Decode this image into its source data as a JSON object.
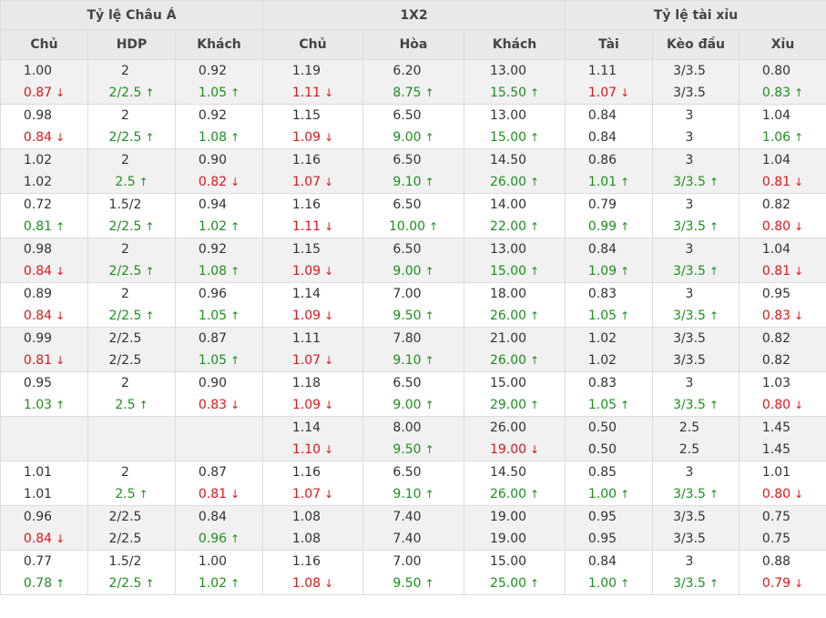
{
  "header": {
    "groups": [
      "Tỷ lệ Châu Á",
      "1X2",
      "Tỷ lệ tài xỉu"
    ],
    "columns": [
      "Chủ",
      "HDP",
      "Khách",
      "Chủ",
      "Hòa",
      "Khách",
      "Tài",
      "Kèo đầu",
      "Xỉu"
    ]
  },
  "colors": {
    "up": "#1d8f1d",
    "down": "#e0161b",
    "text": "#333333",
    "row_alt_bg": "#f1f1f1"
  },
  "rows": [
    {
      "open": [
        "1.00",
        "2",
        "0.92",
        "1.19",
        "6.20",
        "13.00",
        "1.11",
        "3/3.5",
        "0.80"
      ],
      "live": [
        "0.87",
        "2/2.5",
        "1.05",
        "1.11",
        "8.75",
        "15.50",
        "1.07",
        "3/3.5",
        "0.83"
      ],
      "trend": [
        "down",
        "up",
        "up",
        "down",
        "up",
        "up",
        "down",
        "",
        "up"
      ]
    },
    {
      "open": [
        "0.98",
        "2",
        "0.92",
        "1.15",
        "6.50",
        "13.00",
        "0.84",
        "3",
        "1.04"
      ],
      "live": [
        "0.84",
        "2/2.5",
        "1.08",
        "1.09",
        "9.00",
        "15.00",
        "0.84",
        "3",
        "1.06"
      ],
      "trend": [
        "down",
        "up",
        "up",
        "down",
        "up",
        "up",
        "",
        "",
        "up"
      ]
    },
    {
      "open": [
        "1.02",
        "2",
        "0.90",
        "1.16",
        "6.50",
        "14.50",
        "0.86",
        "3",
        "1.04"
      ],
      "live": [
        "1.02",
        "2.5",
        "0.82",
        "1.07",
        "9.10",
        "26.00",
        "1.01",
        "3/3.5",
        "0.81"
      ],
      "trend": [
        "",
        "up",
        "down",
        "down",
        "up",
        "up",
        "up",
        "up",
        "down"
      ]
    },
    {
      "open": [
        "0.72",
        "1.5/2",
        "0.94",
        "1.16",
        "6.50",
        "14.00",
        "0.79",
        "3",
        "0.82"
      ],
      "live": [
        "0.81",
        "2/2.5",
        "1.02",
        "1.11",
        "10.00",
        "22.00",
        "0.99",
        "3/3.5",
        "0.80"
      ],
      "trend": [
        "up",
        "up",
        "up",
        "down",
        "up",
        "up",
        "up",
        "up",
        "down"
      ]
    },
    {
      "open": [
        "0.98",
        "2",
        "0.92",
        "1.15",
        "6.50",
        "13.00",
        "0.84",
        "3",
        "1.04"
      ],
      "live": [
        "0.84",
        "2/2.5",
        "1.08",
        "1.09",
        "9.00",
        "15.00",
        "1.09",
        "3/3.5",
        "0.81"
      ],
      "trend": [
        "down",
        "up",
        "up",
        "down",
        "up",
        "up",
        "up",
        "up",
        "down"
      ]
    },
    {
      "open": [
        "0.89",
        "2",
        "0.96",
        "1.14",
        "7.00",
        "18.00",
        "0.83",
        "3",
        "0.95"
      ],
      "live": [
        "0.84",
        "2/2.5",
        "1.05",
        "1.09",
        "9.50",
        "26.00",
        "1.05",
        "3/3.5",
        "0.83"
      ],
      "trend": [
        "down",
        "up",
        "up",
        "down",
        "up",
        "up",
        "up",
        "up",
        "down"
      ]
    },
    {
      "open": [
        "0.99",
        "2/2.5",
        "0.87",
        "1.11",
        "7.80",
        "21.00",
        "1.02",
        "3/3.5",
        "0.82"
      ],
      "live": [
        "0.81",
        "2/2.5",
        "1.05",
        "1.07",
        "9.10",
        "26.00",
        "1.02",
        "3/3.5",
        "0.82"
      ],
      "trend": [
        "down",
        "",
        "up",
        "down",
        "up",
        "up",
        "",
        "",
        ""
      ]
    },
    {
      "open": [
        "0.95",
        "2",
        "0.90",
        "1.18",
        "6.50",
        "15.00",
        "0.83",
        "3",
        "1.03"
      ],
      "live": [
        "1.03",
        "2.5",
        "0.83",
        "1.09",
        "9.00",
        "29.00",
        "1.05",
        "3/3.5",
        "0.80"
      ],
      "trend": [
        "up",
        "up",
        "down",
        "down",
        "up",
        "up",
        "up",
        "up",
        "down"
      ]
    },
    {
      "open": [
        "",
        "",
        "",
        "1.14",
        "8.00",
        "26.00",
        "0.50",
        "2.5",
        "1.45"
      ],
      "live": [
        "",
        "",
        "",
        "1.10",
        "9.50",
        "19.00",
        "0.50",
        "2.5",
        "1.45"
      ],
      "trend": [
        "",
        "",
        "",
        "down",
        "up",
        "down",
        "",
        "",
        ""
      ]
    },
    {
      "open": [
        "1.01",
        "2",
        "0.87",
        "1.16",
        "6.50",
        "14.50",
        "0.85",
        "3",
        "1.01"
      ],
      "live": [
        "1.01",
        "2.5",
        "0.81",
        "1.07",
        "9.10",
        "26.00",
        "1.00",
        "3/3.5",
        "0.80"
      ],
      "trend": [
        "",
        "up",
        "down",
        "down",
        "up",
        "up",
        "up",
        "up",
        "down"
      ]
    },
    {
      "open": [
        "0.96",
        "2/2.5",
        "0.84",
        "1.08",
        "7.40",
        "19.00",
        "0.95",
        "3/3.5",
        "0.75"
      ],
      "live": [
        "0.84",
        "2/2.5",
        "0.96",
        "1.08",
        "7.40",
        "19.00",
        "0.95",
        "3/3.5",
        "0.75"
      ],
      "trend": [
        "down",
        "",
        "up",
        "",
        "",
        "",
        "",
        "",
        ""
      ]
    },
    {
      "open": [
        "0.77",
        "1.5/2",
        "1.00",
        "1.16",
        "7.00",
        "15.00",
        "0.84",
        "3",
        "0.88"
      ],
      "live": [
        "0.78",
        "2/2.5",
        "1.02",
        "1.08",
        "9.50",
        "25.00",
        "1.00",
        "3/3.5",
        "0.79"
      ],
      "trend": [
        "up",
        "up",
        "up",
        "down",
        "up",
        "up",
        "up",
        "up",
        "down"
      ]
    }
  ]
}
